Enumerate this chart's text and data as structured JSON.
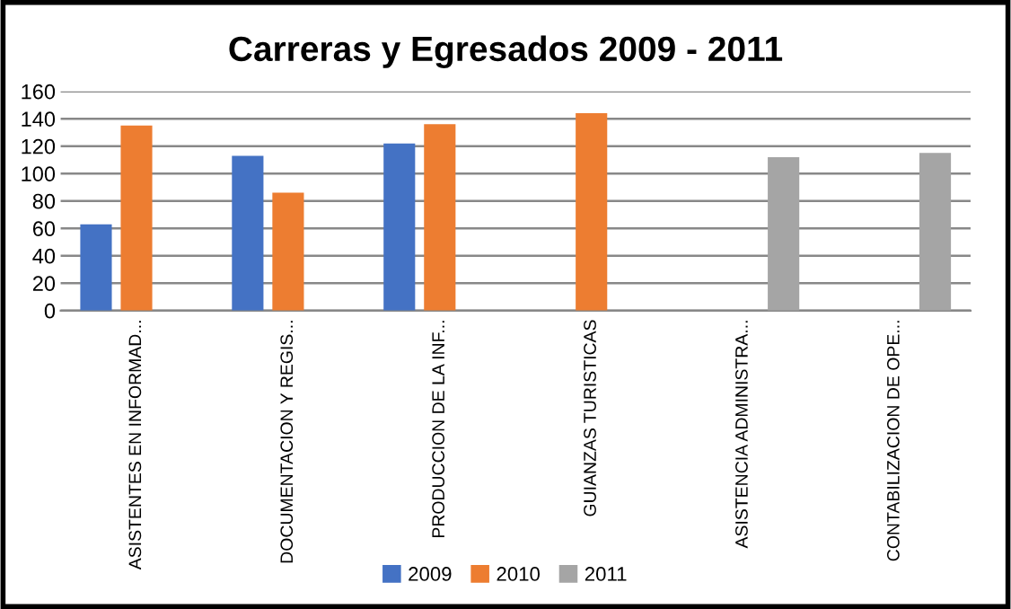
{
  "chart_data": {
    "type": "bar",
    "title": "Carreras y Egresados 2009 - 2011",
    "categories": [
      "ASISTENTES EN INFORMAD...",
      "DOCUMENTACION Y REGIS...",
      "PRODUCCION DE LA INF...",
      "GUIANZAS TURISTICAS",
      "ASISTENCIA ADMINISTRA...",
      "CONTABILIZACION DE OPE..."
    ],
    "series": [
      {
        "name": "2009",
        "color": "#4472c4",
        "values": [
          63,
          113,
          122,
          null,
          null,
          null
        ]
      },
      {
        "name": "2010",
        "color": "#ed7d31",
        "values": [
          135,
          86,
          136,
          144,
          null,
          null
        ]
      },
      {
        "name": "2011",
        "color": "#a5a5a5",
        "values": [
          null,
          null,
          null,
          null,
          112,
          115
        ]
      }
    ],
    "ylim": [
      0,
      160
    ],
    "yticks": [
      0,
      20,
      40,
      60,
      80,
      100,
      120,
      140,
      160
    ],
    "grid": "y",
    "legend": "bottom"
  }
}
